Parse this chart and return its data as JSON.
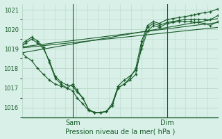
{
  "background_color": "#d8f0e8",
  "grid_color": "#b8d8c8",
  "line_color": "#1a5c2a",
  "marker_color": "#1a5c2a",
  "xlabel": "Pression niveau de la mer( hPa )",
  "ylim": [
    1015.5,
    1021.3
  ],
  "yticks": [
    1016,
    1017,
    1018,
    1019,
    1020,
    1021
  ],
  "vlines_x": [
    0.26,
    0.74
  ],
  "vline_labels": [
    "Sam",
    "Dim"
  ],
  "series": [
    {
      "type": "diagonal",
      "x": [
        0.0,
        1.0
      ],
      "y": [
        1018.8,
        1020.55
      ]
    },
    {
      "type": "diagonal",
      "x": [
        0.0,
        1.0
      ],
      "y": [
        1019.1,
        1020.35
      ]
    },
    {
      "type": "diagonal",
      "x": [
        0.0,
        1.0
      ],
      "y": [
        1019.05,
        1020.1
      ]
    },
    {
      "type": "dip",
      "x": [
        0.0,
        0.02,
        0.05,
        0.08,
        0.11,
        0.14,
        0.17,
        0.2,
        0.23,
        0.26,
        0.28,
        0.31,
        0.34,
        0.37,
        0.4,
        0.43,
        0.46,
        0.49,
        0.52,
        0.55,
        0.58,
        0.61,
        0.64,
        0.67,
        0.7,
        0.74,
        0.77,
        0.8,
        0.83,
        0.86,
        0.88,
        0.9,
        0.93,
        0.96,
        1.0
      ],
      "y": [
        1018.8,
        1018.6,
        1018.4,
        1018.0,
        1017.7,
        1017.4,
        1017.2,
        1017.1,
        1017.0,
        1017.2,
        1016.9,
        1016.5,
        1015.9,
        1015.75,
        1015.75,
        1015.8,
        1016.1,
        1017.0,
        1017.2,
        1017.5,
        1018.0,
        1019.4,
        1020.2,
        1020.4,
        1020.3,
        1020.5,
        1020.55,
        1020.6,
        1020.65,
        1020.7,
        1020.75,
        1020.8,
        1020.85,
        1020.9,
        1021.05
      ]
    },
    {
      "type": "dip",
      "x": [
        0.0,
        0.02,
        0.05,
        0.08,
        0.11,
        0.14,
        0.17,
        0.2,
        0.23,
        0.26,
        0.28,
        0.31,
        0.34,
        0.37,
        0.4,
        0.43,
        0.46,
        0.49,
        0.52,
        0.55,
        0.58,
        0.61,
        0.64,
        0.67,
        0.7,
        0.74,
        0.77,
        0.8,
        0.83,
        0.86,
        0.88,
        0.9,
        0.93,
        0.96,
        1.0
      ],
      "y": [
        1019.15,
        1019.3,
        1019.5,
        1019.3,
        1019.0,
        1018.4,
        1017.6,
        1017.3,
        1017.15,
        1017.1,
        1016.8,
        1016.5,
        1015.9,
        1015.75,
        1015.75,
        1015.8,
        1016.1,
        1017.0,
        1017.2,
        1017.4,
        1017.7,
        1019.2,
        1020.1,
        1020.3,
        1020.2,
        1020.35,
        1020.4,
        1020.45,
        1020.5,
        1020.5,
        1020.5,
        1020.5,
        1020.5,
        1020.5,
        1020.7
      ]
    },
    {
      "type": "dip",
      "x": [
        0.0,
        0.02,
        0.05,
        0.08,
        0.11,
        0.14,
        0.17,
        0.2,
        0.23,
        0.26,
        0.28,
        0.31,
        0.34,
        0.37,
        0.4,
        0.43,
        0.46,
        0.49,
        0.52,
        0.55,
        0.58,
        0.61,
        0.64,
        0.67,
        0.7,
        0.74,
        0.77,
        0.8,
        0.83,
        0.86,
        0.88,
        0.9,
        0.93,
        0.96,
        1.0
      ],
      "y": [
        1019.25,
        1019.4,
        1019.6,
        1019.4,
        1019.1,
        1018.3,
        1017.5,
        1017.2,
        1017.0,
        1016.85,
        1016.5,
        1016.2,
        1015.85,
        1015.75,
        1015.75,
        1015.8,
        1016.2,
        1017.1,
        1017.4,
        1017.6,
        1017.9,
        1019.0,
        1019.9,
        1020.2,
        1020.1,
        1020.3,
        1020.35,
        1020.4,
        1020.4,
        1020.4,
        1020.35,
        1020.35,
        1020.3,
        1020.2,
        1020.4
      ]
    }
  ]
}
